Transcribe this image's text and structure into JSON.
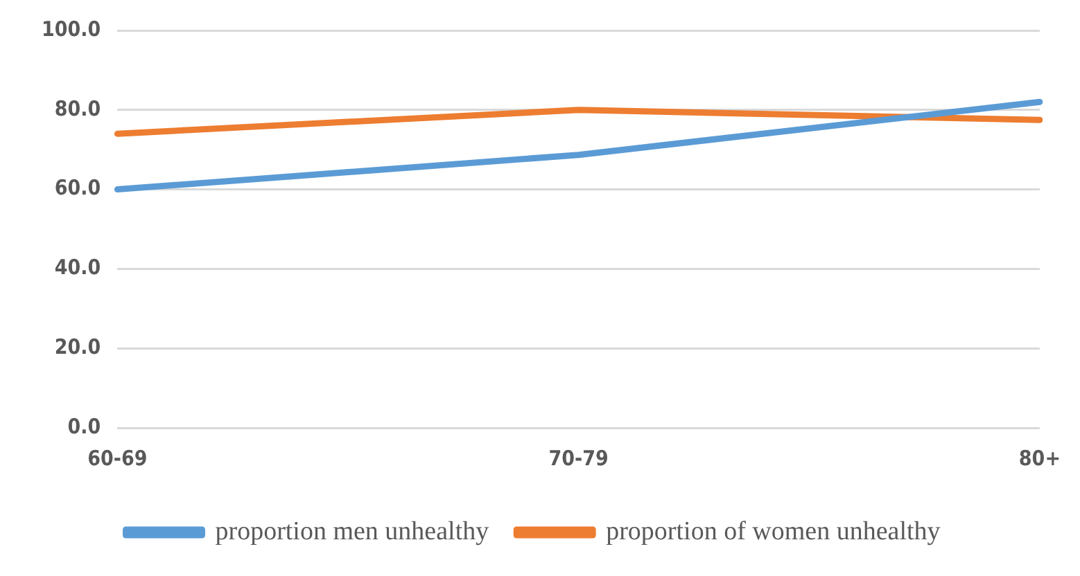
{
  "chart_data": {
    "type": "line",
    "categories": [
      "60-69",
      "70-79",
      "80+"
    ],
    "series": [
      {
        "name": "proportion men unhealthy",
        "color": "#5b9bd5",
        "values": [
          60,
          68.7,
          82
        ]
      },
      {
        "name": "proportion of women unhealthy",
        "color": "#ed7d31",
        "values": [
          74,
          80,
          77.5
        ]
      }
    ],
    "ylim": [
      0,
      100
    ],
    "yticks": [
      {
        "value": 0,
        "label": "0.0"
      },
      {
        "value": 20,
        "label": "20.0"
      },
      {
        "value": 40,
        "label": "40.0"
      },
      {
        "value": 60,
        "label": "60.0"
      },
      {
        "value": 80,
        "label": "80.0"
      },
      {
        "value": 100,
        "label": "100.0"
      }
    ],
    "grid": "y",
    "legend": "bottom",
    "marker": "none",
    "line_style": "solid"
  }
}
